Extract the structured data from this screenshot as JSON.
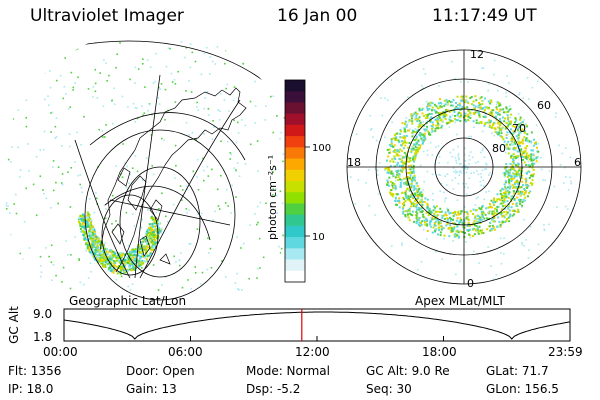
{
  "header": {
    "instrument": "Ultraviolet Imager",
    "date": "16 Jan 00",
    "time": "11:17:49 UT"
  },
  "colorbar": {
    "unit_label": "photon cm⁻²s⁻¹",
    "ticks": [
      "100",
      "10"
    ],
    "colors": [
      "#1a0f2e",
      "#3a0f3a",
      "#6a1030",
      "#a0102a",
      "#d01818",
      "#f04010",
      "#f87808",
      "#fca800",
      "#f0d000",
      "#c8e000",
      "#90e000",
      "#50d040",
      "#30c890",
      "#30c8c8",
      "#60d8e0",
      "#a8e8f0",
      "#e0f4f8",
      "#ffffff"
    ]
  },
  "left_map": {
    "caption": "Geographic Lat/Lon"
  },
  "right_map": {
    "caption": "Apex MLat/MLT",
    "mlt_labels": {
      "top": "12",
      "left": "18",
      "right": "6",
      "bottom": "0"
    },
    "lat_labels": [
      "60",
      "70",
      "80"
    ]
  },
  "altitude_plot": {
    "ylabel": "GC Alt",
    "yticks": [
      "9.0",
      "1.8"
    ],
    "xticks": [
      "00:00",
      "06:00",
      "12:00",
      "18:00",
      "23:59"
    ],
    "current_time_fraction": 0.47
  },
  "info": {
    "flt": "Flt: 1356",
    "ip": "IP: 18.0",
    "door": "Door: Open",
    "gain": "Gain: 13",
    "mode": "Mode: Normal",
    "dsp": "Dsp:   -5.2",
    "gcalt": "GC Alt: 9.0 Re",
    "seq": "Seq: 30",
    "glat": "GLat:  71.7",
    "glon": "GLon: 156.5"
  }
}
